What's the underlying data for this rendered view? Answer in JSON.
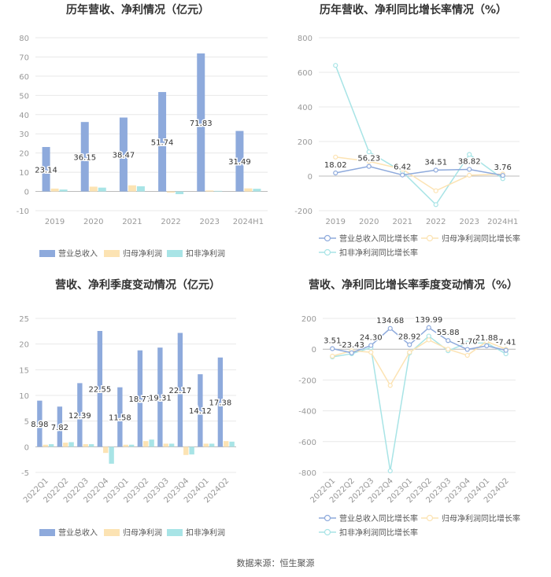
{
  "source": "数据来源：恒生聚源",
  "colors": {
    "revenue": "#8eaadc",
    "net": "#fce3b3",
    "deducted": "#a8e4e6",
    "axis": "#999999",
    "grid": "#e8e8e8",
    "title": "#333333"
  },
  "chart_data": [
    {
      "type": "bar",
      "title": "历年营收、净利情况（亿元）",
      "categories": [
        "2019",
        "2020",
        "2021",
        "2022",
        "2023",
        "2024H1"
      ],
      "ylim": [
        -10,
        80
      ],
      "yticks": [
        -10,
        0,
        10,
        20,
        30,
        40,
        50,
        60,
        70,
        80
      ],
      "series": [
        {
          "name": "营业总收入",
          "values": [
            23.14,
            36.15,
            38.47,
            51.74,
            71.83,
            31.49
          ],
          "labels": [
            "23.14",
            "36.15",
            "38.47",
            "51.74",
            "71.83",
            "31.49"
          ]
        },
        {
          "name": "归母净利润",
          "values": [
            1.5,
            2.5,
            3.2,
            -0.6,
            0.5,
            1.6
          ]
        },
        {
          "name": "扣非净利润",
          "values": [
            1.0,
            2.0,
            2.7,
            -1.4,
            0.3,
            1.4
          ]
        }
      ],
      "legend": "bottom"
    },
    {
      "type": "line",
      "title": "历年营收、净利同比增长率情况（%）",
      "categories": [
        "2019",
        "2020",
        "2021",
        "2022",
        "2023",
        "2024H1"
      ],
      "ylim": [
        -200,
        800
      ],
      "yticks": [
        -200,
        0,
        200,
        400,
        600,
        800
      ],
      "series": [
        {
          "name": "营业总收入同比增长率",
          "values": [
            18.02,
            56.23,
            6.42,
            34.51,
            38.82,
            3.76
          ],
          "labels": [
            "18.02",
            "56.23",
            "6.42",
            "34.51",
            "38.82",
            "3.76"
          ]
        },
        {
          "name": "归母净利润同比增长率",
          "values": [
            110,
            85,
            40,
            -85,
            5,
            12
          ]
        },
        {
          "name": "扣非净利润同比增长率",
          "values": [
            640,
            140,
            25,
            -165,
            125,
            -15
          ]
        }
      ],
      "legend": "bottom"
    },
    {
      "type": "bar",
      "title": "营收、净利季度变动情况（亿元）",
      "categories": [
        "2022Q1",
        "2022Q2",
        "2022Q3",
        "2022Q4",
        "2023Q1",
        "2023Q2",
        "2023Q3",
        "2023Q4",
        "2024Q1",
        "2024Q2"
      ],
      "ylim": [
        -5,
        25
      ],
      "yticks": [
        -5,
        0,
        5,
        10,
        15,
        20,
        25
      ],
      "series": [
        {
          "name": "营业总收入",
          "values": [
            8.98,
            7.82,
            12.39,
            22.55,
            11.58,
            18.77,
            19.31,
            22.17,
            14.12,
            17.38
          ],
          "labels": [
            "8.98",
            "7.82",
            "12.39",
            "22.55",
            "11.58",
            "18.77",
            "19.31",
            "22.17",
            "14.12",
            "17.38"
          ]
        },
        {
          "name": "归母净利润",
          "values": [
            0.4,
            0.8,
            0.5,
            -1.2,
            0.4,
            1.1,
            0.6,
            -1.6,
            0.6,
            1.1
          ]
        },
        {
          "name": "扣非净利润",
          "values": [
            0.5,
            0.9,
            0.5,
            -3.3,
            0.4,
            1.4,
            0.6,
            -1.5,
            0.6,
            1.0
          ]
        }
      ],
      "legend": "bottom"
    },
    {
      "type": "line",
      "title": "营收、净利同比增长率季度变动情况（%）",
      "categories": [
        "2022Q1",
        "2022Q2",
        "2022Q3",
        "2022Q4",
        "2023Q1",
        "2023Q2",
        "2023Q3",
        "2023Q4",
        "2024Q1",
        "2024Q2"
      ],
      "ylim": [
        -800,
        200
      ],
      "yticks": [
        -800,
        -600,
        -400,
        -200,
        0,
        200
      ],
      "series": [
        {
          "name": "营业总收入同比增长率",
          "values": [
            3.51,
            -23.43,
            24.3,
            134.68,
            28.92,
            139.99,
            55.88,
            -1.7,
            21.88,
            -7.41
          ],
          "labels": [
            "3.51",
            "-23.43",
            "24.30",
            "134.68",
            "28.92",
            "139.99",
            "55.88",
            "-1.70",
            "21.88",
            "-7.41"
          ]
        },
        {
          "name": "归母净利润同比增长率",
          "values": [
            -45,
            -10,
            -20,
            -235,
            -20,
            60,
            0,
            -40,
            50,
            0
          ]
        },
        {
          "name": "扣非净利润同比增长率",
          "values": [
            -50,
            -30,
            10,
            -790,
            -25,
            85,
            -10,
            40,
            40,
            -30
          ]
        }
      ],
      "legend": "bottom"
    }
  ]
}
